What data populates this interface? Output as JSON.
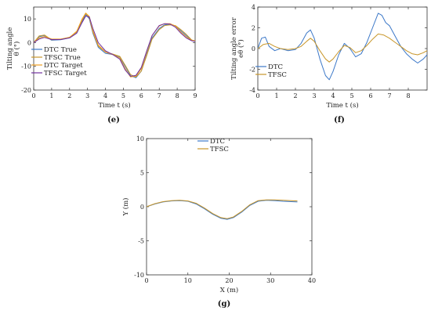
{
  "colors": {
    "dtc": "#3c78c8",
    "tfsc": "#c8962a",
    "dtc_target": "#f0a020",
    "tfsc_target": "#7030a0"
  },
  "chart_data": [
    {
      "id": "e",
      "type": "line",
      "panel_label": "(e)",
      "ylabel_line1": "Tilting angle",
      "ylabel_line2": "θ (°)",
      "xlabel": "Time t (s)",
      "xlim": [
        0,
        9
      ],
      "ylim": [
        -20,
        15
      ],
      "xticks": [
        0,
        1,
        2,
        3,
        4,
        5,
        6,
        7,
        8,
        9
      ],
      "yticks": [
        -20,
        -10,
        0,
        10
      ],
      "legend_position": "bottom-left",
      "series": [
        {
          "name": "DTC True",
          "color": "#3c78c8",
          "x": [
            0,
            0.3,
            0.6,
            1,
            1.5,
            2,
            2.4,
            2.7,
            2.9,
            3.1,
            3.3,
            3.6,
            4,
            4.4,
            4.8,
            5.1,
            5.4,
            5.7,
            6,
            6.3,
            6.6,
            7,
            7.3,
            7.6,
            7.9,
            8.2,
            8.5,
            8.8,
            9
          ],
          "y": [
            0,
            2.5,
            3,
            1,
            1.2,
            2,
            4,
            9,
            11.8,
            10,
            4,
            -2,
            -4.5,
            -5,
            -6,
            -10,
            -14,
            -14.8,
            -12,
            -5,
            2,
            6,
            7.5,
            7.8,
            7,
            5,
            3,
            1,
            0.5
          ]
        },
        {
          "name": "TFSC True",
          "color": "#c8962a",
          "x": [
            0,
            0.3,
            0.6,
            1,
            1.5,
            2,
            2.4,
            2.7,
            2.9,
            3.1,
            3.3,
            3.6,
            4,
            4.4,
            4.8,
            5.1,
            5.4,
            5.7,
            6,
            6.3,
            6.6,
            7,
            7.3,
            7.6,
            7.9,
            8.2,
            8.5,
            8.8,
            9
          ],
          "y": [
            0,
            2.8,
            3.2,
            1.2,
            1.4,
            2.3,
            4.5,
            9.5,
            12.3,
            10.5,
            4.5,
            -1.5,
            -4,
            -4.8,
            -5.8,
            -9.5,
            -13.5,
            -14.5,
            -12,
            -5.5,
            1.5,
            5.5,
            7.2,
            7.5,
            7.2,
            5.5,
            3.5,
            1.2,
            0.5
          ]
        },
        {
          "name": "DTC Target",
          "color": "#f0a020",
          "x": [
            0,
            0.3,
            0.6,
            1,
            1.5,
            2,
            2.4,
            2.7,
            2.9,
            3.1,
            3.3,
            3.6,
            4,
            4.4,
            4.8,
            5.1,
            5.4,
            5.7,
            6,
            6.3,
            6.6,
            7,
            7.3,
            7.6,
            7.9,
            8.2,
            8.5,
            8.8,
            9
          ],
          "y": [
            0,
            2,
            2.6,
            1.5,
            1.5,
            2.2,
            4.8,
            10,
            12.5,
            11,
            5,
            -1,
            -4,
            -5,
            -6.5,
            -11,
            -14.5,
            -14.2,
            -11,
            -4,
            3,
            7,
            8,
            8,
            7,
            4.5,
            2.5,
            1,
            0.8
          ]
        },
        {
          "name": "TFSC Target",
          "color": "#7030a0",
          "x": [
            0,
            0.3,
            0.6,
            1,
            1.5,
            2,
            2.4,
            2.7,
            2.9,
            3.1,
            3.3,
            3.6,
            4,
            4.4,
            4.8,
            5.1,
            5.4,
            5.7,
            6,
            6.3,
            6.6,
            7,
            7.3,
            7.6,
            7.9,
            8.2,
            8.5,
            8.8,
            9
          ],
          "y": [
            0,
            1.5,
            2.2,
            1.3,
            1.3,
            2,
            4,
            8.5,
            11.2,
            10.8,
            6,
            0,
            -3.5,
            -5,
            -7,
            -11.5,
            -14.2,
            -13.8,
            -10.5,
            -3.5,
            3,
            7.2,
            8,
            7.8,
            6.5,
            4,
            2,
            0.8,
            0.5
          ]
        }
      ]
    },
    {
      "id": "f",
      "type": "line",
      "panel_label": "(f)",
      "ylabel_line1": "Tilting angle error",
      "ylabel_line2": "eθ (°)",
      "xlabel": "Time t (s)",
      "xlim": [
        0,
        9
      ],
      "ylim": [
        -4,
        4
      ],
      "xticks": [
        0,
        1,
        2,
        3,
        4,
        5,
        6,
        7,
        8
      ],
      "yticks": [
        -4,
        -2,
        0,
        2,
        4
      ],
      "legend_position": "bottom-left",
      "series": [
        {
          "name": "DTC",
          "color": "#3c78c8",
          "x": [
            0,
            0.2,
            0.4,
            0.6,
            0.9,
            1.2,
            1.6,
            2,
            2.3,
            2.6,
            2.8,
            3,
            3.3,
            3.6,
            3.8,
            4,
            4.3,
            4.6,
            4.9,
            5.2,
            5.5,
            5.8,
            6.1,
            6.4,
            6.6,
            6.8,
            7,
            7.3,
            7.6,
            7.9,
            8.2,
            8.5,
            8.8,
            9
          ],
          "y": [
            0,
            1,
            1.1,
            0.2,
            -0.2,
            0,
            -0.2,
            -0.1,
            0.5,
            1.5,
            1.8,
            1,
            -1,
            -2.6,
            -3,
            -2.2,
            -0.6,
            0.5,
            0,
            -0.8,
            -0.5,
            0.6,
            2,
            3.4,
            3.2,
            2.5,
            2.2,
            1.2,
            0.2,
            -0.5,
            -1,
            -1.4,
            -1,
            -0.6
          ]
        },
        {
          "name": "TFSC",
          "color": "#c8962a",
          "x": [
            0,
            0.3,
            0.6,
            0.9,
            1.2,
            1.6,
            2,
            2.3,
            2.6,
            2.8,
            3,
            3.3,
            3.6,
            3.8,
            4,
            4.3,
            4.6,
            4.9,
            5.2,
            5.5,
            5.8,
            6.1,
            6.4,
            6.7,
            7,
            7.3,
            7.6,
            7.9,
            8.2,
            8.5,
            8.8,
            9
          ],
          "y": [
            0,
            0.4,
            0.5,
            0.2,
            0,
            -0.1,
            0,
            0.2,
            0.7,
            1,
            0.7,
            -0.2,
            -1,
            -1.3,
            -1,
            -0.3,
            0.3,
            0.1,
            -0.4,
            -0.2,
            0.3,
            0.9,
            1.4,
            1.3,
            1,
            0.6,
            0.2,
            -0.2,
            -0.5,
            -0.6,
            -0.4,
            -0.2
          ]
        }
      ]
    },
    {
      "id": "g",
      "type": "line",
      "panel_label": "(g)",
      "ylabel": "Y (m)",
      "xlabel": "X (m)",
      "xlim": [
        0,
        40
      ],
      "ylim": [
        -10,
        10
      ],
      "xticks": [
        0,
        10,
        20,
        30,
        40
      ],
      "yticks": [
        -10,
        -5,
        0,
        5,
        10
      ],
      "legend_position": "top-center",
      "series": [
        {
          "name": "DTC",
          "color": "#3c78c8",
          "x": [
            0,
            2,
            4,
            6,
            8,
            10,
            12,
            14,
            16,
            18,
            19.5,
            21,
            23,
            25,
            27,
            29,
            31,
            33,
            35,
            36.5
          ],
          "y": [
            0,
            0.4,
            0.7,
            0.85,
            0.9,
            0.8,
            0.4,
            -0.3,
            -1.1,
            -1.7,
            -1.85,
            -1.6,
            -0.8,
            0.2,
            0.8,
            0.95,
            0.9,
            0.8,
            0.75,
            0.7
          ]
        },
        {
          "name": "TFSC",
          "color": "#c8962a",
          "x": [
            0,
            2,
            4,
            6,
            8,
            10,
            12,
            14,
            16,
            18,
            19.5,
            21,
            23,
            25,
            27,
            29,
            31,
            33,
            35,
            36.5
          ],
          "y": [
            0,
            0.45,
            0.75,
            0.9,
            0.95,
            0.85,
            0.5,
            -0.2,
            -1,
            -1.6,
            -1.75,
            -1.5,
            -0.7,
            0.3,
            0.9,
            1,
            1,
            0.95,
            0.9,
            0.85
          ]
        }
      ]
    }
  ]
}
